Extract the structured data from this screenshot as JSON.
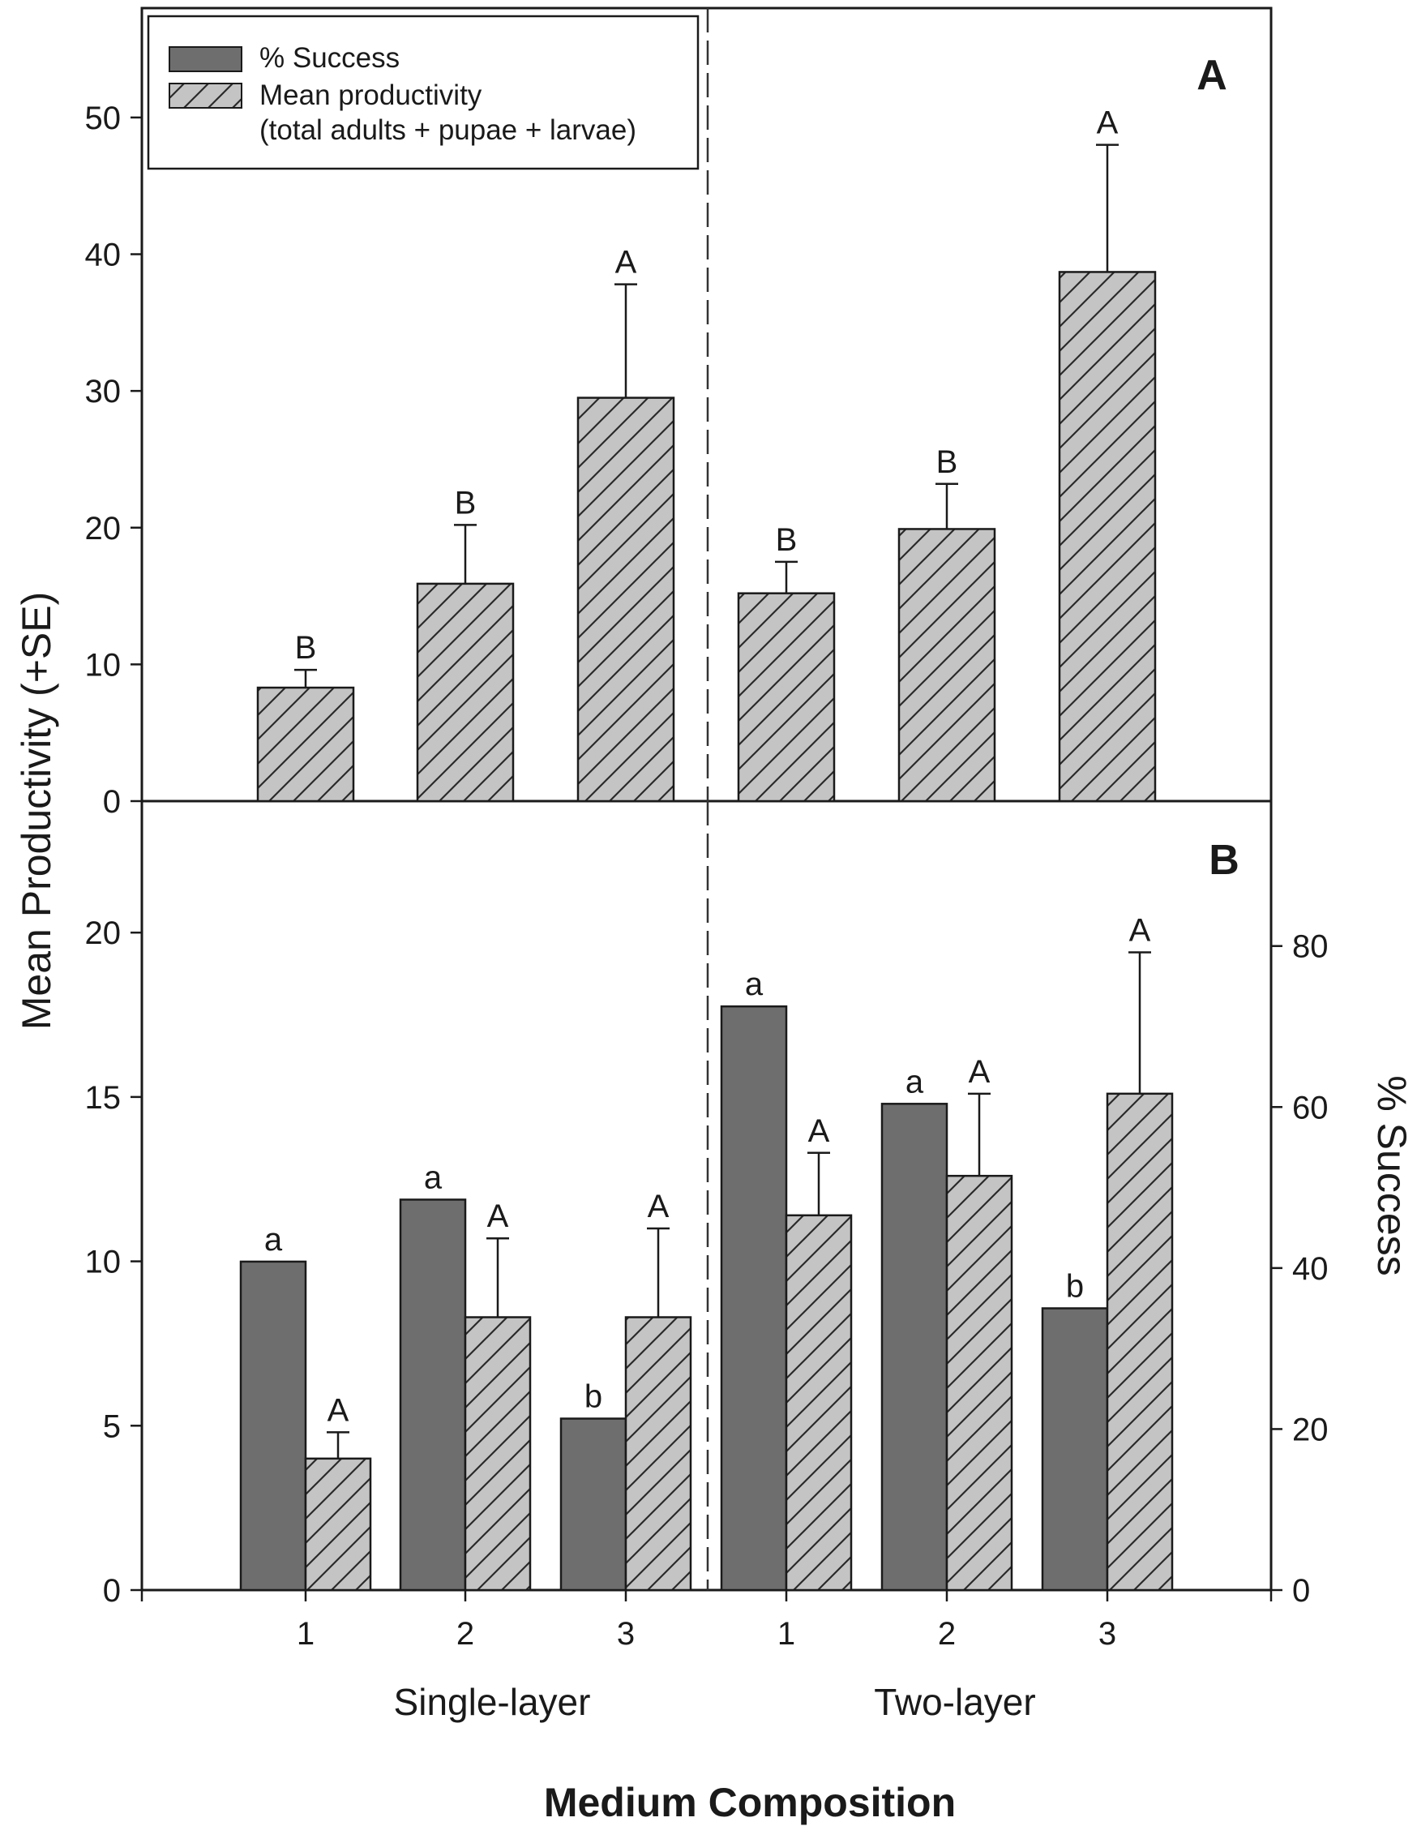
{
  "chart_data": {
    "type": "bar",
    "xlabel": "Medium Composition",
    "ylabel": "Mean Productivity (+SE)",
    "y2label": "% Success",
    "categories": [
      "1",
      "2",
      "3",
      "1",
      "2",
      "3"
    ],
    "groups": [
      {
        "label": "Single-layer",
        "categories": [
          "1",
          "2",
          "3"
        ]
      },
      {
        "label": "Two-layer",
        "categories": [
          "1",
          "2",
          "3"
        ]
      }
    ],
    "legend": {
      "position": "top-left",
      "entries": [
        {
          "label": "% Success",
          "style": "solid-dark",
          "color": "#6e6e6e"
        },
        {
          "label_line1": "Mean productivity",
          "label_line2": "(total adults + pupae + larvae)",
          "style": "hatched-light",
          "color": "#c4c4c4"
        }
      ]
    },
    "panels": [
      {
        "label": "A",
        "ylim": [
          0,
          58
        ],
        "yticks": [
          0,
          10,
          20,
          30,
          40,
          50
        ],
        "series": [
          {
            "name": "Mean productivity",
            "color": "#c4c4c4",
            "values": [
              8.3,
              15.9,
              29.5,
              15.2,
              19.9,
              38.7
            ],
            "se_upper": [
              9.6,
              20.2,
              37.8,
              17.5,
              23.2,
              48.0
            ],
            "letters": [
              "B",
              "B",
              "A",
              "B",
              "B",
              "A"
            ]
          }
        ]
      },
      {
        "label": "B",
        "ylim": [
          0,
          24
        ],
        "yticks": [
          0,
          5,
          10,
          15,
          20
        ],
        "y2lim": [
          0,
          98
        ],
        "y2ticks": [
          0,
          20,
          40,
          60,
          80
        ],
        "series": [
          {
            "name": "% Success",
            "axis": "right",
            "color": "#6e6e6e",
            "values": [
              40.8,
              48.5,
              21.3,
              72.5,
              60.4,
              35.0
            ],
            "letters": [
              "a",
              "a",
              "b",
              "a",
              "a",
              "b"
            ]
          },
          {
            "name": "Mean productivity",
            "axis": "left",
            "color": "#c4c4c4",
            "values": [
              4.0,
              8.3,
              8.3,
              11.4,
              12.6,
              15.1
            ],
            "se_upper": [
              4.8,
              10.7,
              11.0,
              13.3,
              15.1,
              19.4
            ],
            "letters": [
              "A",
              "A",
              "A",
              "A",
              "A",
              "A"
            ]
          }
        ]
      }
    ]
  }
}
